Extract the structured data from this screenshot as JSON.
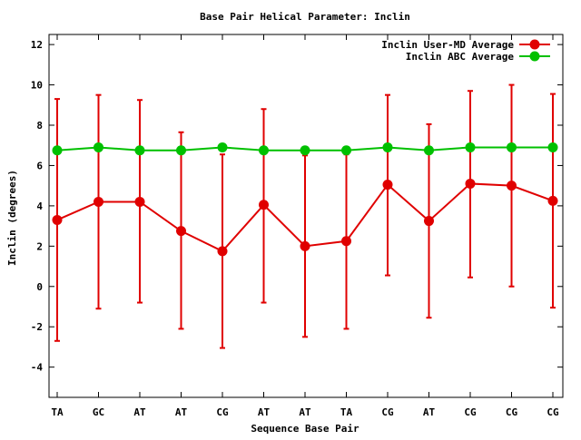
{
  "chart_data": {
    "type": "line",
    "title": "Base Pair Helical Parameter: Inclin",
    "xlabel": "Sequence Base Pair",
    "ylabel": "Inclin (degrees)",
    "categories": [
      "TA",
      "GC",
      "AT",
      "AT",
      "CG",
      "AT",
      "AT",
      "TA",
      "CG",
      "AT",
      "CG",
      "CG",
      "CG"
    ],
    "ylim": [
      -5.5,
      12.5
    ],
    "yticks": [
      -4,
      -2,
      0,
      2,
      4,
      6,
      8,
      10,
      12
    ],
    "ytick_labels": [
      "-4",
      "-2",
      "0",
      "2",
      "4",
      "6",
      "8",
      "10",
      "12"
    ],
    "legend_position": "top-right",
    "grid": false,
    "series": [
      {
        "name": "Inclin User-MD Average",
        "color": "#e00000",
        "values": [
          3.3,
          4.2,
          4.2,
          2.75,
          1.75,
          4.05,
          2.0,
          2.25,
          5.05,
          3.25,
          5.1,
          5.0,
          4.25
        ],
        "error_low": [
          -2.7,
          -1.1,
          -0.8,
          -2.1,
          -3.05,
          -0.8,
          -2.5,
          -2.1,
          0.55,
          -1.55,
          0.45,
          0.0,
          -1.05
        ],
        "error_high": [
          9.3,
          9.5,
          9.25,
          7.65,
          6.55,
          8.8,
          6.5,
          6.55,
          9.5,
          8.05,
          9.7,
          10.0,
          9.55
        ]
      },
      {
        "name": "Inclin ABC Average",
        "color": "#00c000",
        "values": [
          6.75,
          6.9,
          6.75,
          6.75,
          6.9,
          6.75,
          6.75,
          6.75,
          6.9,
          6.75,
          6.9,
          6.9,
          6.9
        ]
      }
    ]
  }
}
